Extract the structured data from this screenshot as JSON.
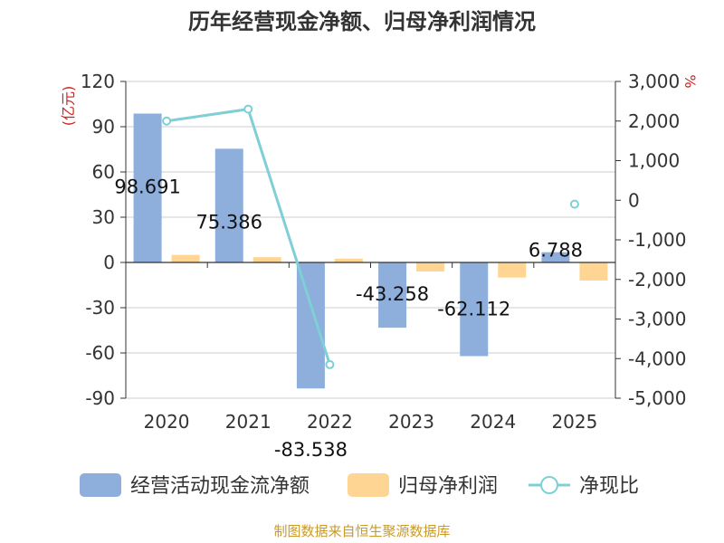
{
  "chart_data": {
    "type": "bar",
    "title": "历年经营现金净额、归母净利润情况",
    "categories": [
      "2020",
      "2021",
      "2022",
      "2023",
      "2024",
      "2025"
    ],
    "series": [
      {
        "name": "经营活动现金流净额",
        "kind": "bar",
        "axis": "left",
        "values": [
          98.691,
          75.386,
          -83.538,
          -43.258,
          -62.112,
          6.788
        ],
        "data_labels": [
          "98.691",
          "75.386",
          "-83.538",
          "-43.258",
          "-62.112",
          "6.788"
        ],
        "color": "#8eaedb"
      },
      {
        "name": "归母净利润",
        "kind": "bar",
        "axis": "left",
        "values": [
          5,
          3.5,
          2.5,
          -6,
          -10,
          -12
        ],
        "color": "#fed592"
      },
      {
        "name": "净现比",
        "kind": "line",
        "axis": "right",
        "values": [
          2000,
          2300,
          -4150,
          null,
          null,
          -100
        ],
        "color": "#7ecfd6"
      }
    ],
    "y_left": {
      "unit": "(亿元)",
      "ylim": [
        -90,
        120
      ],
      "ticks": [
        120,
        90,
        60,
        30,
        0,
        -30,
        -60,
        -90
      ],
      "tick_labels": [
        "120",
        "90",
        "60",
        "30",
        "0",
        "-30",
        "-60",
        "-90"
      ]
    },
    "y_right": {
      "unit": "%",
      "ylim": [
        -5000,
        3000
      ],
      "ticks": [
        3000,
        2000,
        1000,
        0,
        -1000,
        -2000,
        -3000,
        -4000,
        -5000
      ],
      "tick_labels": [
        "3,000",
        "2,000",
        "1,000",
        "0",
        "-1,000",
        "-2,000",
        "-3,000",
        "-4,000",
        "-5,000"
      ]
    },
    "grid": true,
    "legend_position": "bottom",
    "source": "制图数据来自恒生聚源数据库"
  }
}
